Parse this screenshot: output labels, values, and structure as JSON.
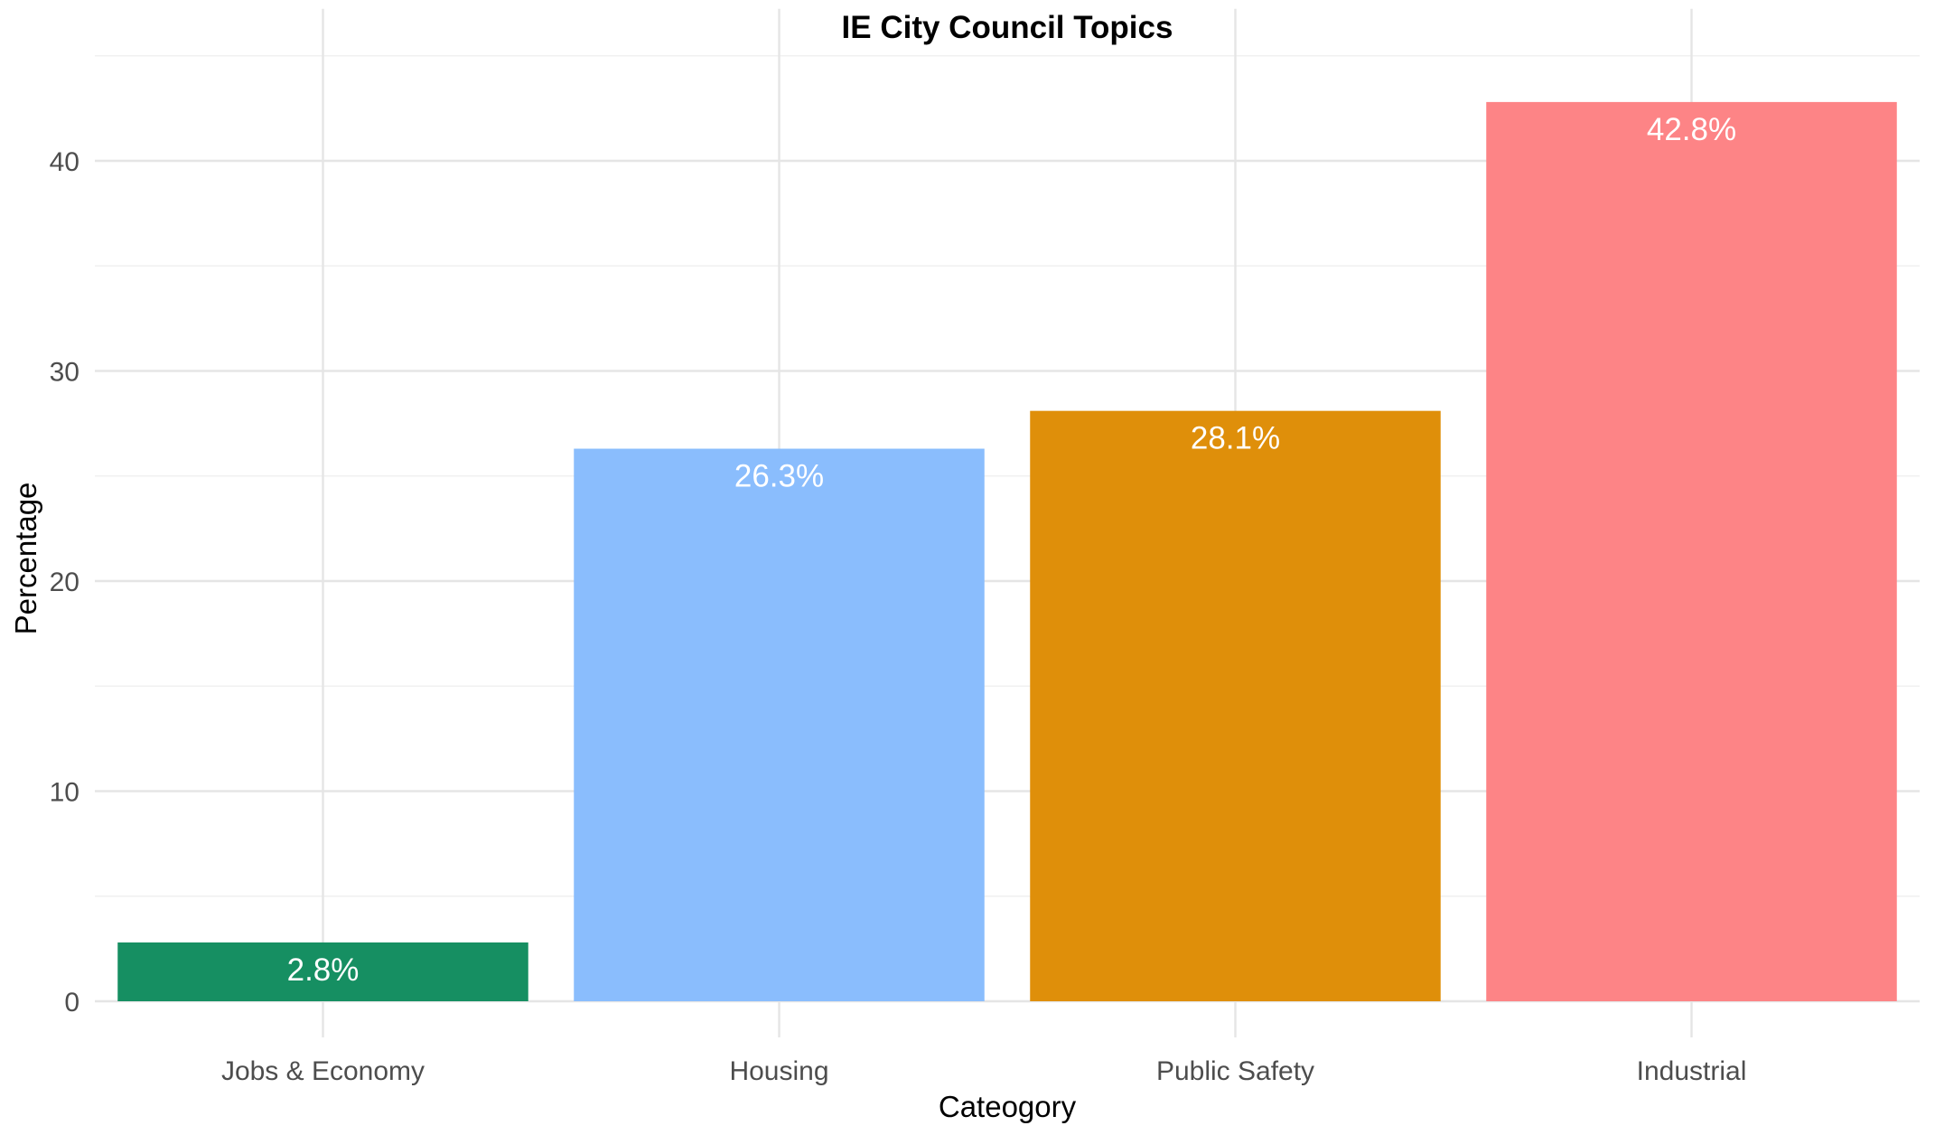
{
  "chart_data": {
    "type": "bar",
    "title": "IE City Council Topics",
    "xlabel": "Cateogory",
    "ylabel": "Percentage",
    "categories": [
      "Jobs & Economy",
      "Housing",
      "Public Safety",
      "Industrial"
    ],
    "values": [
      2.8,
      26.3,
      28.1,
      42.8
    ],
    "data_labels": [
      "2.8%",
      "26.3%",
      "28.1%",
      "42.8%"
    ],
    "colors": [
      "#168f62",
      "#8abdfd",
      "#df8f0a",
      "#fd8486"
    ],
    "ylim": [
      0,
      45
    ],
    "yticks": [
      0,
      10,
      20,
      30,
      40
    ],
    "grid": true,
    "legend": "none"
  }
}
